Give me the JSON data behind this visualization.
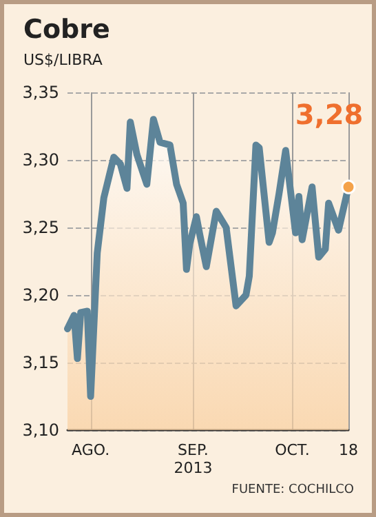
{
  "chart_data": {
    "type": "area",
    "title": "Cobre",
    "subtitle": "US$/LIBRA",
    "x": [
      "2013-07-25",
      "2013-07-27",
      "2013-07-28",
      "2013-07-29",
      "2013-07-31",
      "2013-08-01",
      "2013-08-03",
      "2013-08-05",
      "2013-08-08",
      "2013-08-10",
      "2013-08-12",
      "2013-08-13",
      "2013-08-15",
      "2013-08-18",
      "2013-08-20",
      "2013-08-22",
      "2013-08-25",
      "2013-08-27",
      "2013-08-29",
      "2013-08-30",
      "2013-08-31",
      "2013-09-02",
      "2013-09-03",
      "2013-09-05",
      "2013-09-08",
      "2013-09-11",
      "2013-09-14",
      "2013-09-17",
      "2013-09-18",
      "2013-09-20",
      "2013-09-21",
      "2013-09-24",
      "2013-09-25",
      "2013-09-27",
      "2013-09-29",
      "2013-10-02",
      "2013-10-03",
      "2013-10-04",
      "2013-10-07",
      "2013-10-09",
      "2013-10-11",
      "2013-10-12",
      "2013-10-15",
      "2013-10-18"
    ],
    "series": [
      {
        "color": "#5d8499",
        "values": [
          3.175,
          3.185,
          3.153,
          3.187,
          3.188,
          3.125,
          3.231,
          3.272,
          3.302,
          3.297,
          3.279,
          3.328,
          3.304,
          3.282,
          3.33,
          3.313,
          3.311,
          3.282,
          3.268,
          3.219,
          3.238,
          3.258,
          3.245,
          3.221,
          3.262,
          3.25,
          3.192,
          3.2,
          3.214,
          3.311,
          3.309,
          3.239,
          3.246,
          3.275,
          3.307,
          3.246,
          3.273,
          3.241,
          3.28,
          3.228,
          3.234,
          3.268,
          3.248,
          3.28
        ],
        "value_labels": [
          null,
          null,
          null,
          null,
          null,
          null,
          null,
          null,
          null,
          null,
          null,
          null,
          null,
          null,
          null,
          null,
          null,
          null,
          null,
          null,
          null,
          null,
          null,
          null,
          null,
          null,
          null,
          null,
          null,
          null,
          null,
          null,
          null,
          null,
          null,
          null,
          null,
          null,
          null,
          null,
          null,
          null,
          null,
          "3,28"
        ]
      }
    ],
    "xlim": [
      "2013-07-25",
      "2013-10-18"
    ],
    "xticks": [
      {
        "value": "2013-08-01",
        "label": "AGO."
      },
      {
        "value": "2013-09-01",
        "label": "SEP.\n2013"
      },
      {
        "value": "2013-10-01",
        "label": "OCT."
      },
      {
        "value": "2013-10-18",
        "label": "18"
      }
    ],
    "ylim": [
      3.1,
      3.35
    ],
    "yticks": [
      {
        "value": 3.1,
        "label": "3,10"
      },
      {
        "value": 3.15,
        "label": "3,15"
      },
      {
        "value": 3.2,
        "label": "3,20"
      },
      {
        "value": 3.25,
        "label": "3,25"
      },
      {
        "value": 3.3,
        "label": "3,30"
      },
      {
        "value": 3.35,
        "label": "3,35"
      }
    ],
    "grid": true,
    "marker": "none",
    "line_style": "solid",
    "annotations": [
      "FUENTE: COCHILCO"
    ]
  }
}
